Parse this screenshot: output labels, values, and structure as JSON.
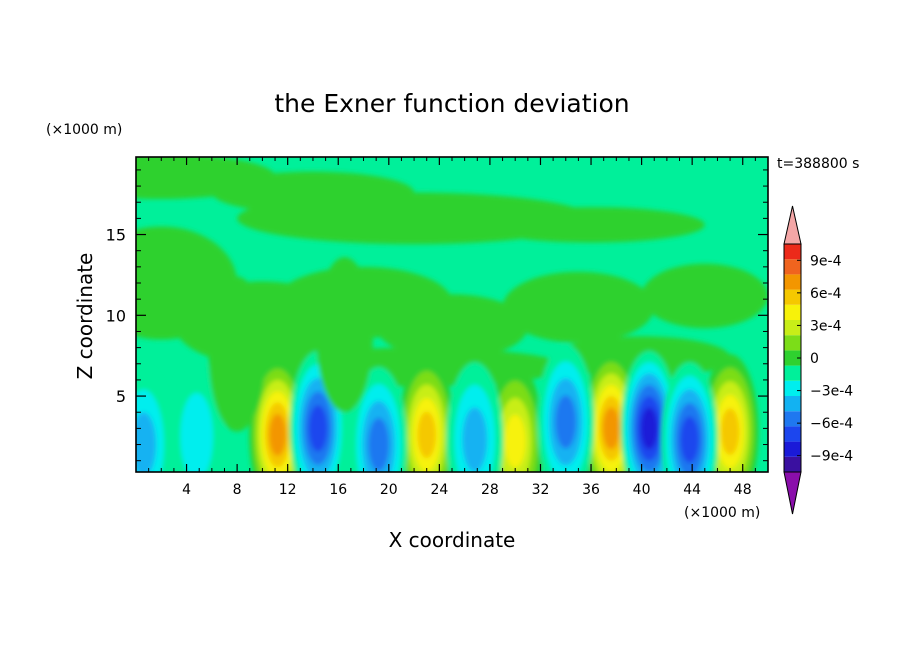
{
  "chart_data": {
    "type": "heatmap",
    "title": "the Exner function deviation",
    "xlabel": "X coordinate",
    "ylabel": "Z coordinate",
    "x_unit": "(×1000 m)",
    "y_unit": "(×1000 m)",
    "time_label": "t=388800 s",
    "xlim": [
      0,
      50
    ],
    "ylim": [
      0.3,
      19.8
    ],
    "x_ticks": [
      4,
      8,
      12,
      16,
      20,
      24,
      28,
      32,
      36,
      40,
      44,
      48
    ],
    "x_tick_labels": [
      "4",
      "8",
      "12",
      "16",
      "20",
      "24",
      "28",
      "32",
      "36",
      "40",
      "44",
      "48"
    ],
    "y_ticks": [
      5,
      10,
      15
    ],
    "y_tick_labels": [
      "5",
      "10",
      "15"
    ],
    "colorbar": {
      "levels": [
        -0.00105,
        -0.0009,
        -0.00075,
        -0.0006,
        -0.00045,
        -0.0003,
        -0.00015,
        0,
        0.00015,
        0.0003,
        0.00045,
        0.0006,
        0.00075,
        0.0009,
        0.00105
      ],
      "colors": [
        "#8a0eab",
        "#3a10a0",
        "#1a1ad8",
        "#1c46ee",
        "#1f78f0",
        "#12b2f2",
        "#00eeee",
        "#00f09a",
        "#2fd12f",
        "#7cdd18",
        "#c8ee18",
        "#f7f20a",
        "#f5c800",
        "#f39600",
        "#f0641e",
        "#ec2a1a",
        "#f4a6a6"
      ],
      "tick_values": [
        0.0009,
        0.0006,
        0.0003,
        0,
        -0.0003,
        -0.0006,
        -0.0009
      ],
      "tick_labels": [
        "9e-4",
        "6e-4",
        "3e-4",
        "0",
        "−3e-4",
        "−6e-4",
        "−9e-4"
      ]
    },
    "field_features": [
      {
        "x": 11.2,
        "z": 2.6,
        "peak": 0.0009
      },
      {
        "x": 23.0,
        "z": 2.6,
        "peak": 0.00075
      },
      {
        "x": 30.0,
        "z": 2.2,
        "peak": 0.0006
      },
      {
        "x": 37.6,
        "z": 3.0,
        "peak": 0.00095
      },
      {
        "x": 47.0,
        "z": 2.8,
        "peak": 0.00075
      },
      {
        "x": 0.6,
        "z": 2.0,
        "peak": -0.0004
      },
      {
        "x": 4.8,
        "z": 2.5,
        "peak": -0.0003
      },
      {
        "x": 14.4,
        "z": 3.0,
        "peak": -0.00075
      },
      {
        "x": 19.2,
        "z": 2.0,
        "peak": -0.00055
      },
      {
        "x": 26.8,
        "z": 2.3,
        "peak": -0.0005
      },
      {
        "x": 34.0,
        "z": 3.4,
        "peak": -0.0006
      },
      {
        "x": 40.6,
        "z": 3.0,
        "peak": -0.00085
      },
      {
        "x": 43.8,
        "z": 2.3,
        "peak": -0.0008
      },
      {
        "x": 8.0,
        "z": 7.6,
        "peak": 0.0002
      },
      {
        "x": 16.5,
        "z": 8.8,
        "peak": 0.0001
      }
    ]
  }
}
